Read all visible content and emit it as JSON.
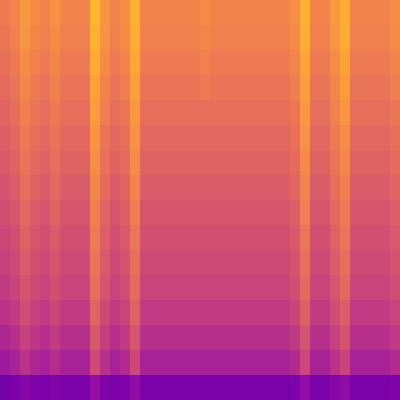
{
  "chart_data": {
    "type": "heatmap",
    "color": "plasma",
    "zlim": [
      0,
      1
    ],
    "tick_labels": false,
    "cells": [
      [
        0.67,
        0.7,
        0.76,
        0.72,
        0.7,
        0.74,
        0.7,
        0.7,
        0.7,
        0.84,
        0.75,
        0.7,
        0.73,
        0.83,
        0.7,
        0.7,
        0.7,
        0.7,
        0.7,
        0.7,
        0.72,
        0.7,
        0.7,
        0.7,
        0.7,
        0.7,
        0.7,
        0.7,
        0.7,
        0.73,
        0.83,
        0.7,
        0.7,
        0.76,
        0.82,
        0.7,
        0.7,
        0.7,
        0.7,
        0.73
      ],
      [
        0.66,
        0.69,
        0.75,
        0.71,
        0.69,
        0.73,
        0.69,
        0.69,
        0.69,
        0.83,
        0.74,
        0.69,
        0.72,
        0.82,
        0.69,
        0.69,
        0.69,
        0.69,
        0.69,
        0.69,
        0.71,
        0.69,
        0.69,
        0.69,
        0.69,
        0.69,
        0.69,
        0.69,
        0.69,
        0.72,
        0.82,
        0.69,
        0.69,
        0.75,
        0.81,
        0.69,
        0.69,
        0.69,
        0.69,
        0.72
      ],
      [
        0.64,
        0.67,
        0.73,
        0.69,
        0.67,
        0.71,
        0.67,
        0.67,
        0.67,
        0.81,
        0.72,
        0.67,
        0.7,
        0.8,
        0.67,
        0.67,
        0.67,
        0.67,
        0.67,
        0.67,
        0.69,
        0.67,
        0.67,
        0.67,
        0.67,
        0.67,
        0.67,
        0.67,
        0.67,
        0.7,
        0.8,
        0.67,
        0.67,
        0.73,
        0.79,
        0.67,
        0.67,
        0.67,
        0.67,
        0.7
      ],
      [
        0.62,
        0.65,
        0.71,
        0.67,
        0.65,
        0.69,
        0.65,
        0.65,
        0.65,
        0.79,
        0.7,
        0.65,
        0.68,
        0.78,
        0.65,
        0.65,
        0.65,
        0.65,
        0.65,
        0.65,
        0.67,
        0.65,
        0.65,
        0.65,
        0.65,
        0.65,
        0.65,
        0.65,
        0.65,
        0.68,
        0.78,
        0.65,
        0.65,
        0.71,
        0.77,
        0.65,
        0.65,
        0.65,
        0.65,
        0.68
      ],
      [
        0.6,
        0.63,
        0.69,
        0.65,
        0.63,
        0.67,
        0.63,
        0.63,
        0.63,
        0.77,
        0.68,
        0.63,
        0.66,
        0.76,
        0.63,
        0.63,
        0.63,
        0.63,
        0.63,
        0.63,
        0.63,
        0.63,
        0.63,
        0.63,
        0.63,
        0.63,
        0.63,
        0.63,
        0.63,
        0.66,
        0.76,
        0.63,
        0.63,
        0.69,
        0.75,
        0.63,
        0.63,
        0.63,
        0.63,
        0.66
      ],
      [
        0.58,
        0.61,
        0.67,
        0.63,
        0.61,
        0.65,
        0.61,
        0.61,
        0.61,
        0.75,
        0.66,
        0.61,
        0.64,
        0.74,
        0.61,
        0.61,
        0.61,
        0.61,
        0.61,
        0.61,
        0.61,
        0.61,
        0.61,
        0.61,
        0.61,
        0.61,
        0.61,
        0.61,
        0.61,
        0.64,
        0.74,
        0.61,
        0.61,
        0.67,
        0.73,
        0.61,
        0.61,
        0.61,
        0.61,
        0.64
      ],
      [
        0.56,
        0.59,
        0.65,
        0.61,
        0.59,
        0.63,
        0.59,
        0.59,
        0.59,
        0.73,
        0.64,
        0.59,
        0.62,
        0.72,
        0.59,
        0.59,
        0.59,
        0.59,
        0.59,
        0.59,
        0.59,
        0.59,
        0.59,
        0.59,
        0.59,
        0.59,
        0.59,
        0.59,
        0.59,
        0.62,
        0.72,
        0.59,
        0.59,
        0.65,
        0.71,
        0.59,
        0.59,
        0.59,
        0.59,
        0.62
      ],
      [
        0.54,
        0.57,
        0.63,
        0.59,
        0.57,
        0.61,
        0.57,
        0.57,
        0.57,
        0.71,
        0.62,
        0.57,
        0.6,
        0.7,
        0.57,
        0.57,
        0.57,
        0.57,
        0.57,
        0.57,
        0.57,
        0.57,
        0.57,
        0.57,
        0.57,
        0.57,
        0.57,
        0.57,
        0.57,
        0.6,
        0.7,
        0.57,
        0.57,
        0.63,
        0.69,
        0.57,
        0.57,
        0.57,
        0.57,
        0.6
      ],
      [
        0.52,
        0.55,
        0.61,
        0.57,
        0.55,
        0.59,
        0.55,
        0.55,
        0.55,
        0.69,
        0.6,
        0.55,
        0.58,
        0.68,
        0.55,
        0.55,
        0.55,
        0.55,
        0.55,
        0.55,
        0.55,
        0.55,
        0.55,
        0.55,
        0.55,
        0.55,
        0.55,
        0.55,
        0.55,
        0.58,
        0.68,
        0.55,
        0.55,
        0.61,
        0.67,
        0.55,
        0.55,
        0.55,
        0.55,
        0.58
      ],
      [
        0.5,
        0.53,
        0.59,
        0.55,
        0.53,
        0.57,
        0.53,
        0.53,
        0.53,
        0.67,
        0.58,
        0.53,
        0.56,
        0.66,
        0.53,
        0.53,
        0.53,
        0.53,
        0.53,
        0.53,
        0.53,
        0.53,
        0.53,
        0.53,
        0.53,
        0.53,
        0.53,
        0.53,
        0.53,
        0.56,
        0.66,
        0.53,
        0.53,
        0.59,
        0.65,
        0.53,
        0.53,
        0.53,
        0.53,
        0.56
      ],
      [
        0.48,
        0.51,
        0.57,
        0.53,
        0.51,
        0.55,
        0.51,
        0.51,
        0.51,
        0.65,
        0.56,
        0.51,
        0.54,
        0.64,
        0.51,
        0.51,
        0.51,
        0.51,
        0.51,
        0.51,
        0.51,
        0.51,
        0.51,
        0.51,
        0.51,
        0.51,
        0.51,
        0.51,
        0.51,
        0.54,
        0.64,
        0.51,
        0.51,
        0.57,
        0.63,
        0.51,
        0.51,
        0.51,
        0.51,
        0.54
      ],
      [
        0.46,
        0.49,
        0.55,
        0.51,
        0.49,
        0.53,
        0.49,
        0.49,
        0.49,
        0.63,
        0.54,
        0.49,
        0.52,
        0.62,
        0.49,
        0.49,
        0.49,
        0.49,
        0.49,
        0.49,
        0.49,
        0.49,
        0.49,
        0.49,
        0.49,
        0.49,
        0.49,
        0.49,
        0.49,
        0.52,
        0.62,
        0.49,
        0.49,
        0.55,
        0.61,
        0.49,
        0.49,
        0.49,
        0.49,
        0.52
      ],
      [
        0.43,
        0.46,
        0.52,
        0.48,
        0.46,
        0.5,
        0.46,
        0.46,
        0.46,
        0.6,
        0.51,
        0.46,
        0.49,
        0.59,
        0.46,
        0.46,
        0.46,
        0.46,
        0.46,
        0.46,
        0.46,
        0.46,
        0.46,
        0.46,
        0.46,
        0.46,
        0.46,
        0.46,
        0.46,
        0.49,
        0.59,
        0.46,
        0.46,
        0.52,
        0.58,
        0.46,
        0.46,
        0.46,
        0.46,
        0.49
      ],
      [
        0.39,
        0.42,
        0.48,
        0.44,
        0.42,
        0.46,
        0.42,
        0.42,
        0.42,
        0.56,
        0.47,
        0.42,
        0.45,
        0.55,
        0.42,
        0.42,
        0.42,
        0.42,
        0.42,
        0.42,
        0.42,
        0.42,
        0.42,
        0.42,
        0.42,
        0.42,
        0.42,
        0.42,
        0.42,
        0.45,
        0.55,
        0.42,
        0.42,
        0.48,
        0.54,
        0.42,
        0.42,
        0.42,
        0.42,
        0.45
      ],
      [
        0.34,
        0.37,
        0.43,
        0.39,
        0.37,
        0.41,
        0.37,
        0.37,
        0.37,
        0.51,
        0.42,
        0.37,
        0.4,
        0.5,
        0.37,
        0.37,
        0.37,
        0.37,
        0.37,
        0.37,
        0.37,
        0.37,
        0.37,
        0.37,
        0.37,
        0.37,
        0.37,
        0.37,
        0.37,
        0.4,
        0.5,
        0.37,
        0.37,
        0.43,
        0.49,
        0.37,
        0.37,
        0.37,
        0.37,
        0.4
      ],
      [
        0.22,
        0.24,
        0.27,
        0.25,
        0.24,
        0.26,
        0.24,
        0.24,
        0.24,
        0.31,
        0.26,
        0.24,
        0.25,
        0.3,
        0.24,
        0.24,
        0.24,
        0.24,
        0.24,
        0.24,
        0.24,
        0.24,
        0.24,
        0.24,
        0.24,
        0.24,
        0.24,
        0.24,
        0.24,
        0.25,
        0.3,
        0.24,
        0.24,
        0.27,
        0.3,
        0.24,
        0.24,
        0.24,
        0.24,
        0.25
      ]
    ]
  }
}
